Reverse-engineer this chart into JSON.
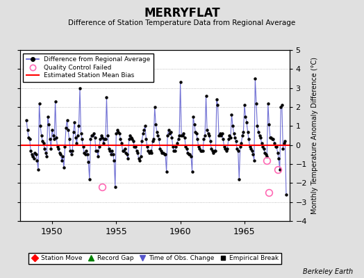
{
  "title": "MERRYFLAT",
  "subtitle": "Difference of Station Temperature Data from Regional Average",
  "ylabel_right": "Monthly Temperature Anomaly Difference (°C)",
  "xlim": [
    1947.5,
    1968.5
  ],
  "ylim": [
    -4,
    5
  ],
  "yticks": [
    -4,
    -3,
    -2,
    -1,
    0,
    1,
    2,
    3,
    4,
    5
  ],
  "xticks": [
    1950,
    1955,
    1960,
    1965
  ],
  "bias_line_y": 0.0,
  "bias_color": "#ff0000",
  "line_color": "#5555cc",
  "marker_color": "#000000",
  "qc_fail_color": "#ff69b4",
  "bg_color": "#e0e0e0",
  "plot_bg_color": "#ffffff",
  "berkeley_earth_text": "Berkeley Earth",
  "legend1_entries": [
    {
      "label": "Difference from Regional Average"
    },
    {
      "label": "Quality Control Failed"
    },
    {
      "label": "Estimated Station Mean Bias"
    }
  ],
  "legend2_entries": [
    {
      "label": "Station Move",
      "color": "#ff0000",
      "marker": "D"
    },
    {
      "label": "Record Gap",
      "color": "#008000",
      "marker": "^"
    },
    {
      "label": "Time of Obs. Change",
      "color": "#5555cc",
      "marker": "v"
    },
    {
      "label": "Empirical Break",
      "color": "#000000",
      "marker": "s"
    }
  ],
  "time_series": [
    1948.0,
    1948.083,
    1948.167,
    1948.25,
    1948.333,
    1948.417,
    1948.5,
    1948.583,
    1948.667,
    1948.75,
    1948.833,
    1948.917,
    1949.0,
    1949.083,
    1949.167,
    1949.25,
    1949.333,
    1949.417,
    1949.5,
    1949.583,
    1949.667,
    1949.75,
    1949.833,
    1949.917,
    1950.0,
    1950.083,
    1950.167,
    1950.25,
    1950.333,
    1950.417,
    1950.5,
    1950.583,
    1950.667,
    1950.75,
    1950.833,
    1950.917,
    1951.0,
    1951.083,
    1951.167,
    1951.25,
    1951.333,
    1951.417,
    1951.5,
    1951.583,
    1951.667,
    1951.75,
    1951.833,
    1951.917,
    1952.0,
    1952.083,
    1952.167,
    1952.25,
    1952.333,
    1952.417,
    1952.5,
    1952.583,
    1952.667,
    1952.75,
    1952.833,
    1952.917,
    1953.0,
    1953.083,
    1953.167,
    1953.25,
    1953.333,
    1953.417,
    1953.5,
    1953.583,
    1953.667,
    1953.75,
    1953.833,
    1953.917,
    1954.0,
    1954.083,
    1954.167,
    1954.25,
    1954.333,
    1954.417,
    1954.5,
    1954.583,
    1954.667,
    1954.75,
    1954.833,
    1954.917,
    1955.0,
    1955.083,
    1955.167,
    1955.25,
    1955.333,
    1955.417,
    1955.5,
    1955.583,
    1955.667,
    1955.75,
    1955.833,
    1955.917,
    1956.0,
    1956.083,
    1956.167,
    1956.25,
    1956.333,
    1956.417,
    1956.5,
    1956.583,
    1956.667,
    1956.75,
    1956.833,
    1956.917,
    1957.0,
    1957.083,
    1957.167,
    1957.25,
    1957.333,
    1957.417,
    1957.5,
    1957.583,
    1957.667,
    1957.75,
    1957.833,
    1957.917,
    1958.0,
    1958.083,
    1958.167,
    1958.25,
    1958.333,
    1958.417,
    1958.5,
    1958.583,
    1958.667,
    1958.75,
    1958.833,
    1958.917,
    1959.0,
    1959.083,
    1959.167,
    1959.25,
    1959.333,
    1959.417,
    1959.5,
    1959.583,
    1959.667,
    1959.75,
    1959.833,
    1959.917,
    1960.0,
    1960.083,
    1960.167,
    1960.25,
    1960.333,
    1960.417,
    1960.5,
    1960.583,
    1960.667,
    1960.75,
    1960.833,
    1960.917,
    1961.0,
    1961.083,
    1961.167,
    1961.25,
    1961.333,
    1961.417,
    1961.5,
    1961.583,
    1961.667,
    1961.75,
    1961.833,
    1961.917,
    1962.0,
    1962.083,
    1962.167,
    1962.25,
    1962.333,
    1962.417,
    1962.5,
    1962.583,
    1962.667,
    1962.75,
    1962.833,
    1962.917,
    1963.0,
    1963.083,
    1963.167,
    1963.25,
    1963.333,
    1963.417,
    1963.5,
    1963.583,
    1963.667,
    1963.75,
    1963.833,
    1963.917,
    1964.0,
    1964.083,
    1964.167,
    1964.25,
    1964.333,
    1964.417,
    1964.5,
    1964.583,
    1964.667,
    1964.75,
    1964.833,
    1964.917,
    1965.0,
    1965.083,
    1965.167,
    1965.25,
    1965.333,
    1965.417,
    1965.5,
    1965.583,
    1965.667,
    1965.75,
    1965.833,
    1965.917,
    1966.0,
    1966.083,
    1966.167,
    1966.25,
    1966.333,
    1966.417,
    1966.5,
    1966.583,
    1966.667,
    1966.75,
    1966.833,
    1966.917,
    1967.0,
    1967.083,
    1967.167,
    1967.25,
    1967.333,
    1967.417,
    1967.5,
    1967.583,
    1967.667,
    1967.75,
    1967.833,
    1967.917,
    1968.0,
    1968.083,
    1968.167,
    1968.25
  ],
  "values": [
    1.3,
    0.8,
    0.4,
    0.3,
    -0.3,
    -0.5,
    -0.6,
    -0.7,
    -0.4,
    -0.5,
    -0.8,
    -1.3,
    2.2,
    1.0,
    0.5,
    0.2,
    0.1,
    -0.2,
    -0.4,
    -0.6,
    1.5,
    1.1,
    0.3,
    -0.2,
    0.8,
    0.5,
    0.3,
    2.3,
    0.4,
    -0.1,
    -0.2,
    -0.4,
    -0.5,
    -0.8,
    -0.6,
    -1.2,
    -0.1,
    0.9,
    1.3,
    0.8,
    0.3,
    -0.3,
    -0.5,
    -0.3,
    0.7,
    1.2,
    0.4,
    0.1,
    0.5,
    1.0,
    3.0,
    0.6,
    0.3,
    -0.1,
    -0.4,
    -0.5,
    -0.3,
    -0.5,
    -0.9,
    -1.8,
    0.3,
    0.5,
    0.5,
    0.6,
    0.4,
    -0.3,
    -0.3,
    -0.6,
    -0.1,
    0.3,
    0.5,
    0.4,
    0.1,
    0.3,
    0.3,
    2.5,
    0.5,
    -0.2,
    -0.3,
    -0.5,
    -0.3,
    -0.5,
    -0.8,
    -2.2,
    0.6,
    0.8,
    0.7,
    0.6,
    0.3,
    0.1,
    -0.3,
    -0.3,
    -0.2,
    -0.4,
    -0.5,
    -0.7,
    0.3,
    0.5,
    0.4,
    0.3,
    0.2,
    -0.1,
    -0.1,
    -0.3,
    -0.4,
    -0.7,
    -0.8,
    -0.6,
    0.2,
    0.6,
    0.8,
    1.0,
    0.3,
    -0.1,
    -0.3,
    -0.4,
    -0.3,
    -0.4,
    0.2,
    0.3,
    2.0,
    1.1,
    0.7,
    0.5,
    0.3,
    -0.2,
    -0.3,
    -0.4,
    -0.4,
    -0.5,
    -0.5,
    -1.4,
    0.5,
    0.8,
    0.6,
    0.7,
    0.4,
    -0.1,
    -0.3,
    -0.3,
    -0.1,
    0.1,
    0.3,
    0.5,
    3.3,
    0.5,
    0.5,
    0.6,
    0.4,
    -0.1,
    -0.2,
    -0.4,
    -0.5,
    -0.5,
    -0.6,
    -1.4,
    1.5,
    1.1,
    0.7,
    0.6,
    0.3,
    -0.1,
    -0.2,
    -0.3,
    -0.3,
    -0.3,
    0.3,
    0.5,
    2.6,
    0.8,
    0.6,
    0.5,
    0.2,
    -0.2,
    -0.3,
    -0.4,
    -0.3,
    -0.3,
    2.4,
    2.1,
    0.5,
    0.6,
    0.5,
    0.6,
    0.3,
    -0.1,
    -0.2,
    -0.3,
    -0.2,
    0.3,
    0.5,
    0.4,
    1.6,
    1.0,
    0.6,
    0.4,
    0.2,
    -0.2,
    -0.3,
    -1.8,
    -0.1,
    0.1,
    0.5,
    0.7,
    2.1,
    1.5,
    1.2,
    0.7,
    0.3,
    -0.1,
    -0.2,
    -0.3,
    -0.5,
    -0.8,
    3.5,
    2.2,
    1.0,
    0.7,
    0.5,
    0.4,
    0.1,
    -0.1,
    -0.2,
    -0.4,
    -0.5,
    -0.6,
    2.2,
    1.1,
    0.4,
    0.4,
    0.3,
    0.3,
    0.1,
    -0.1,
    -0.1,
    -0.4,
    -0.7,
    -1.3,
    2.0,
    2.1,
    -0.2,
    0.1,
    0.2,
    -2.6
  ],
  "qc_fail_times": [
    1953.917,
    1966.75,
    1966.917,
    1967.583
  ],
  "qc_fail_values": [
    -2.2,
    -0.8,
    -2.5,
    -1.3
  ]
}
